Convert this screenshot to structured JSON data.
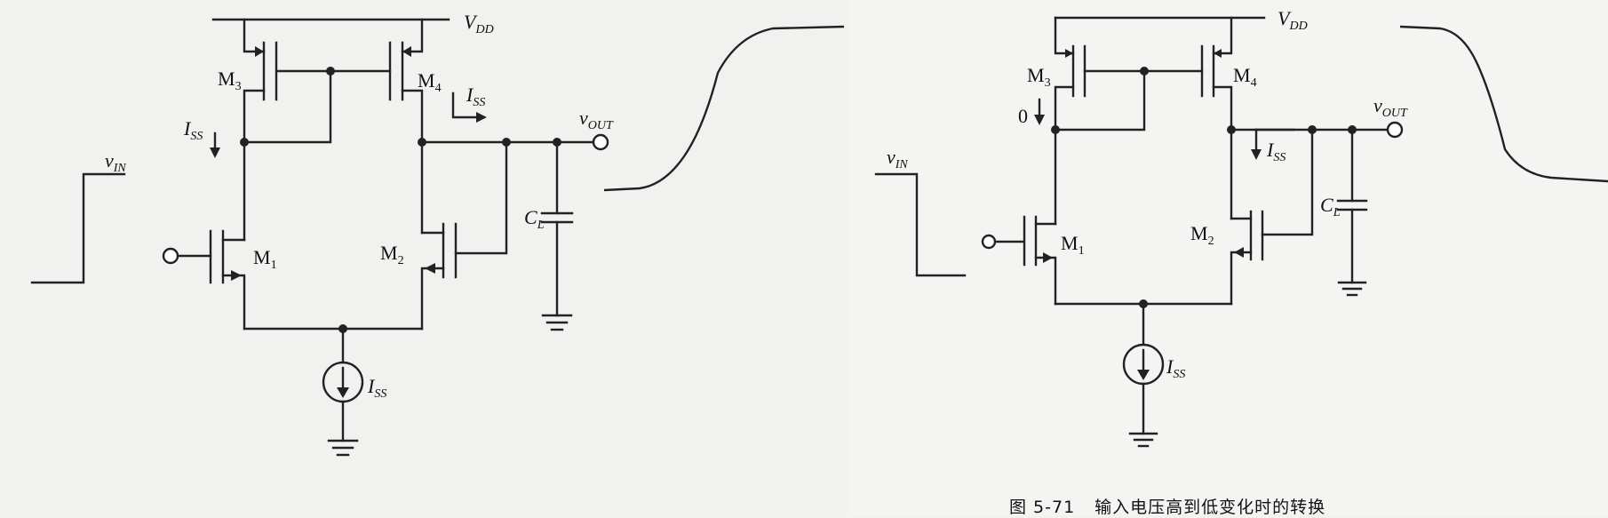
{
  "left_panel": {
    "supply_label": {
      "main": "V",
      "sub": "DD"
    },
    "transistors": [
      {
        "id": "M3",
        "main": "M",
        "sub": "3"
      },
      {
        "id": "M4",
        "main": "M",
        "sub": "4"
      },
      {
        "id": "M1",
        "main": "M",
        "sub": "1"
      },
      {
        "id": "M2",
        "main": "M",
        "sub": "2"
      }
    ],
    "current_labels": [
      {
        "id": "iss-m3",
        "main": "I",
        "sub": "SS"
      },
      {
        "id": "iss-m4",
        "main": "I",
        "sub": "SS"
      },
      {
        "id": "iss-source",
        "main": "I",
        "sub": "SS"
      }
    ],
    "output_label": {
      "main": "v",
      "sub": "OUT"
    },
    "input_label": {
      "main": "v",
      "sub": "IN"
    },
    "load_cap_label": {
      "main": "C",
      "sub": "L"
    }
  },
  "right_panel": {
    "supply_label": {
      "main": "V",
      "sub": "DD"
    },
    "transistors": [
      {
        "id": "M3",
        "main": "M",
        "sub": "3"
      },
      {
        "id": "M4",
        "main": "M",
        "sub": "4"
      },
      {
        "id": "M1",
        "main": "M",
        "sub": "1"
      },
      {
        "id": "M2",
        "main": "M",
        "sub": "2"
      }
    ],
    "current_labels": [
      {
        "id": "zero-m3",
        "text": "0"
      },
      {
        "id": "iss-m2",
        "main": "I",
        "sub": "SS"
      },
      {
        "id": "iss-source",
        "main": "I",
        "sub": "SS"
      }
    ],
    "output_label": {
      "main": "v",
      "sub": "OUT"
    },
    "input_label": {
      "main": "v",
      "sub": "IN"
    },
    "load_cap_label": {
      "main": "C",
      "sub": "L"
    }
  },
  "caption": {
    "figure_number": "图 5-71",
    "title": "输入电压高到低变化时的转换"
  }
}
